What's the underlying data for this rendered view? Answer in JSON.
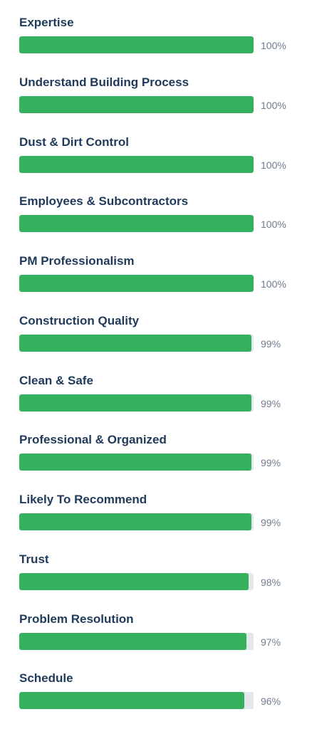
{
  "ratings": [
    {
      "label": "Expertise",
      "percent_text": "100%",
      "value": 100
    },
    {
      "label": "Understand Building Process",
      "percent_text": "100%",
      "value": 100
    },
    {
      "label": "Dust & Dirt Control",
      "percent_text": "100%",
      "value": 100
    },
    {
      "label": "Employees & Subcontractors",
      "percent_text": "100%",
      "value": 100
    },
    {
      "label": "PM Professionalism",
      "percent_text": "100%",
      "value": 100
    },
    {
      "label": "Construction Quality",
      "percent_text": "99%",
      "value": 99
    },
    {
      "label": "Clean & Safe",
      "percent_text": "99%",
      "value": 99
    },
    {
      "label": "Professional & Organized",
      "percent_text": "99%",
      "value": 99
    },
    {
      "label": "Likely To Recommend",
      "percent_text": "99%",
      "value": 99
    },
    {
      "label": "Trust",
      "percent_text": "98%",
      "value": 98
    },
    {
      "label": "Problem Resolution",
      "percent_text": "97%",
      "value": 97
    },
    {
      "label": "Schedule",
      "percent_text": "96%",
      "value": 96
    }
  ],
  "colors": {
    "label": "#1f3a5b",
    "bar_fill": "#35b05c",
    "bar_track": "#e4e8ec",
    "percent": "#6f7d8c"
  }
}
